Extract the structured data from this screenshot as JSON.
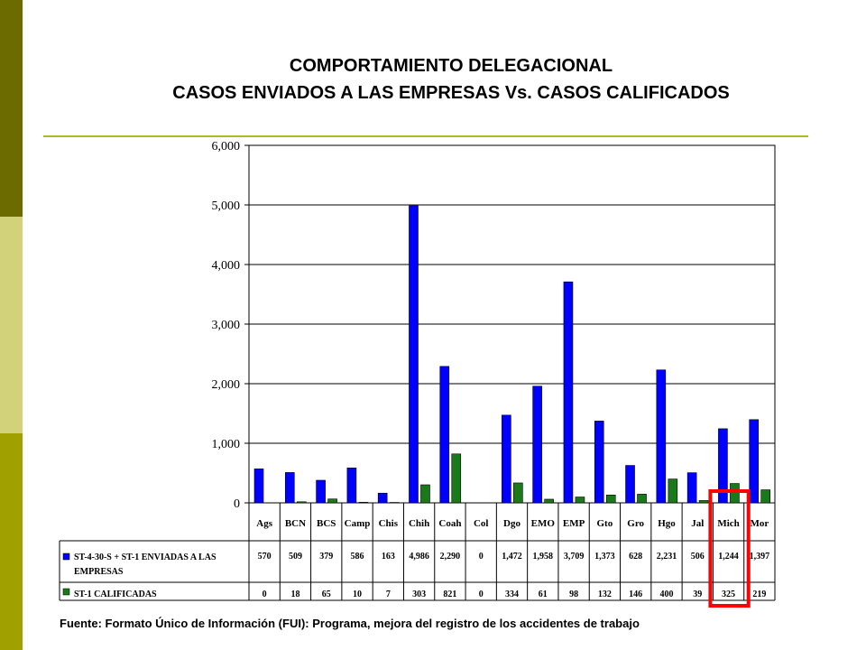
{
  "colors": {
    "side_band": [
      "#6b6b00",
      "#d2d27a",
      "#a0a000"
    ],
    "rule": "#b5b52a",
    "series_blue": "#0000ff",
    "series_green": "#1a7a1a",
    "highlight": "#ff0000"
  },
  "header": {
    "title_line1": "COMPORTAMIENTO DELEGACIONAL",
    "title_line2": "CASOS ENVIADOS A LAS EMPRESAS Vs. CASOS CALIFICADOS"
  },
  "footer": {
    "source": "Fuente: Formato Único de Información (FUI): Programa, mejora del registro de los accidentes de trabajo"
  },
  "chart_data": {
    "type": "bar",
    "categories": [
      "Ags",
      "BCN",
      "BCS",
      "Camp",
      "Chis",
      "Chih",
      "Coah",
      "Col",
      "Dgo",
      "EMO",
      "EMP",
      "Gto",
      "Gro",
      "Hgo",
      "Jal",
      "Mich",
      "Mor"
    ],
    "series": [
      {
        "name_lines": [
          "ST-4-30-S + ST-1 ENVIADAS A LAS",
          "EMPRESAS"
        ],
        "color": "#0000ff",
        "values": [
          570,
          509,
          379,
          586,
          163,
          4986,
          2290,
          0,
          1472,
          1958,
          3709,
          1373,
          628,
          2231,
          506,
          1244,
          1397
        ],
        "labels": [
          "570",
          "509",
          "379",
          "586",
          "163",
          "4,986",
          "2,290",
          "0",
          "1,472",
          "1,958",
          "3,709",
          "1,373",
          "628",
          "2,231",
          "506",
          "1,244",
          "1,397"
        ]
      },
      {
        "name_lines": [
          "ST-1 CALIFICADAS"
        ],
        "color": "#1a7a1a",
        "values": [
          0,
          18,
          65,
          10,
          7,
          303,
          821,
          0,
          334,
          61,
          98,
          132,
          146,
          400,
          39,
          325,
          219
        ],
        "labels": [
          "0",
          "18",
          "65",
          "10",
          "7",
          "303",
          "821",
          "0",
          "334",
          "61",
          "98",
          "132",
          "146",
          "400",
          "39",
          "325",
          "219"
        ]
      }
    ],
    "ylim": [
      0,
      6000
    ],
    "yticks": [
      0,
      1000,
      2000,
      3000,
      4000,
      5000,
      6000
    ],
    "ytick_labels": [
      "0",
      "1,000",
      "2,000",
      "3,000",
      "4,000",
      "5,000",
      "6,000"
    ],
    "grid": true,
    "legend": "data table below the chart",
    "highlight_category": "Mich"
  }
}
